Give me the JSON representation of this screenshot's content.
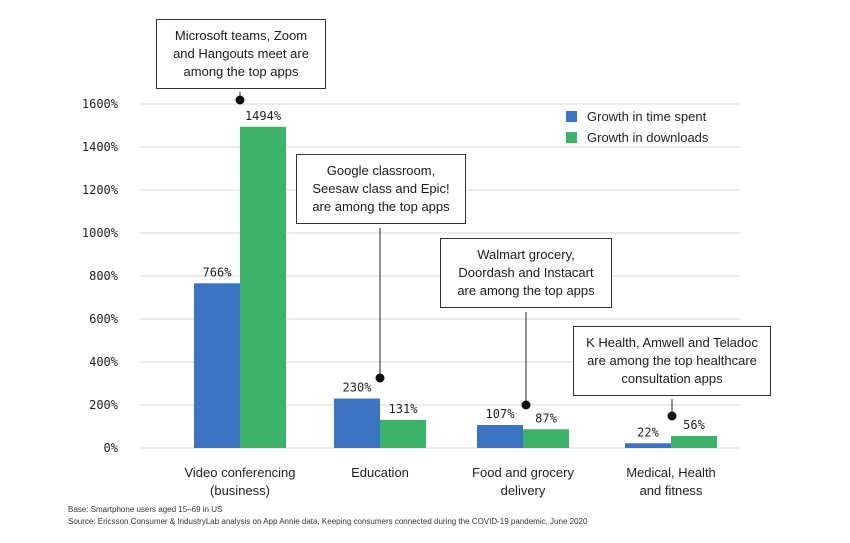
{
  "chart_data": {
    "type": "bar",
    "categories": [
      [
        "Video conferencing",
        "(business)"
      ],
      [
        "Education"
      ],
      [
        "Food and grocery",
        "delivery"
      ],
      [
        "Medical, Health",
        "and fitness"
      ]
    ],
    "series": [
      {
        "name": "Growth in time spent",
        "color": "#3a74c2",
        "values": [
          766,
          230,
          107,
          22
        ]
      },
      {
        "name": "Growth in downloads",
        "color": "#3bb36a",
        "values": [
          1494,
          131,
          87,
          56
        ]
      }
    ],
    "data_labels": [
      [
        "766%",
        "1494%"
      ],
      [
        "230%",
        "131%"
      ],
      [
        "107%",
        "87%"
      ],
      [
        "22%",
        "56%"
      ]
    ],
    "yticks": [
      "0%",
      "200%",
      "400%",
      "600%",
      "800%",
      "1000%",
      "1200%",
      "1400%",
      "1600%"
    ],
    "ylim": [
      0,
      1600
    ],
    "grid": true,
    "legend_position": "top-right",
    "annotations": [
      {
        "lines": [
          "Microsoft teams, Zoom",
          "and Hangouts meet are",
          "among the top apps"
        ]
      },
      {
        "lines": [
          "Google classroom,",
          "Seesaw class and Epic!",
          "are among the top apps"
        ]
      },
      {
        "lines": [
          "Walmart grocery,",
          "Doordash and Instacart",
          "are among the top apps"
        ]
      },
      {
        "lines": [
          "K Health, Amwell and Teladoc",
          "are among the top healthcare",
          "consultation apps"
        ]
      }
    ]
  },
  "footnotes": {
    "base": "Base: Smartphone users aged 15–69 in US",
    "source": "Source: Ericsson Consumer & IndustryLab analysis on App Annie data, Keeping consumers connected during the COVID-19 pandemic, June 2020"
  }
}
